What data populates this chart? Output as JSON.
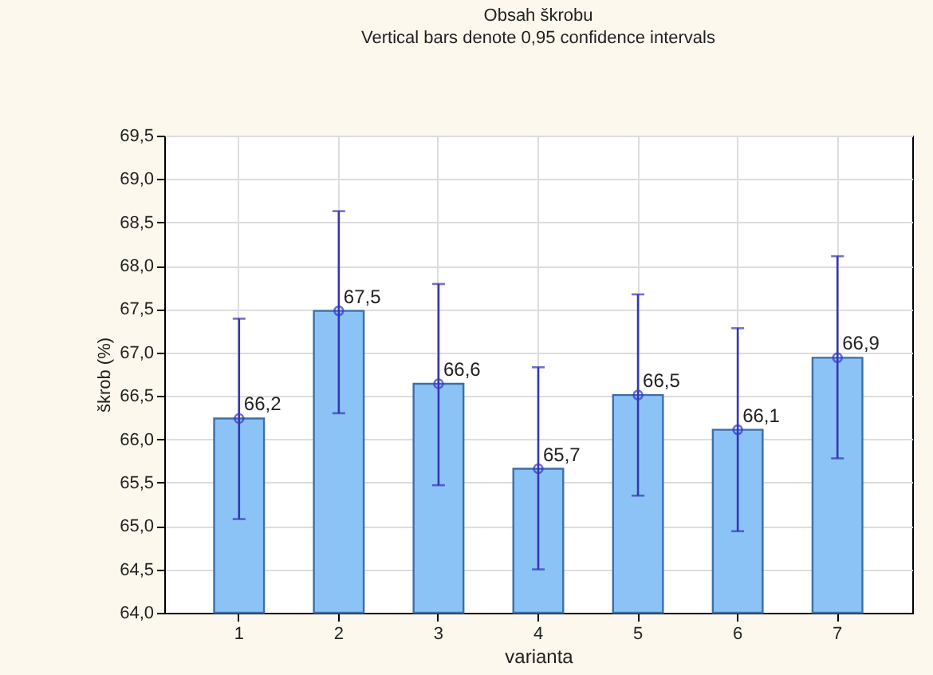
{
  "chart_data": {
    "type": "bar",
    "title": "Obsah škrobu",
    "subtitle": "Vertical bars denote 0,95 confidence intervals",
    "xlabel": "varianta",
    "ylabel": "škrob (%)",
    "categories": [
      "1",
      "2",
      "3",
      "4",
      "5",
      "6",
      "7"
    ],
    "series": [
      {
        "color": "#8cc3f6",
        "values": [
          66.24,
          67.48,
          66.64,
          65.66,
          66.51,
          66.11,
          66.94
        ],
        "errors": [
          [
            65.08,
            67.39
          ],
          [
            66.3,
            68.63
          ],
          [
            65.47,
            67.79
          ],
          [
            64.5,
            66.83
          ],
          [
            65.35,
            67.67
          ],
          [
            64.94,
            67.28
          ],
          [
            65.78,
            68.11
          ]
        ],
        "value_labels": [
          "66,2",
          "67,5",
          "66,6",
          "65,7",
          "66,5",
          "66,1",
          "66,9"
        ]
      },
      {
        "type": "scatter",
        "color": "#3535d0",
        "x": [
          "1",
          "2",
          "3",
          "4",
          "5",
          "6",
          "7"
        ],
        "values": [
          66.24,
          67.48,
          66.64,
          65.66,
          66.51,
          66.11,
          66.94
        ]
      }
    ],
    "ylim": [
      64,
      69.5
    ],
    "yticks": [
      {
        "value": 64,
        "label": "64,0"
      },
      {
        "value": 64.5,
        "label": "64,5"
      },
      {
        "value": 65,
        "label": "65,0"
      },
      {
        "value": 65.5,
        "label": "65,5"
      },
      {
        "value": 66,
        "label": "66,0"
      },
      {
        "value": 66.5,
        "label": "66,5"
      },
      {
        "value": 67,
        "label": "67,0"
      },
      {
        "value": 67.5,
        "label": "67,5"
      },
      {
        "value": 68,
        "label": "68,0"
      },
      {
        "value": 68.5,
        "label": "68,5"
      },
      {
        "value": 69,
        "label": "69,0"
      },
      {
        "value": 69.5,
        "label": "69,5"
      }
    ],
    "grid": true,
    "marker": "circle"
  }
}
